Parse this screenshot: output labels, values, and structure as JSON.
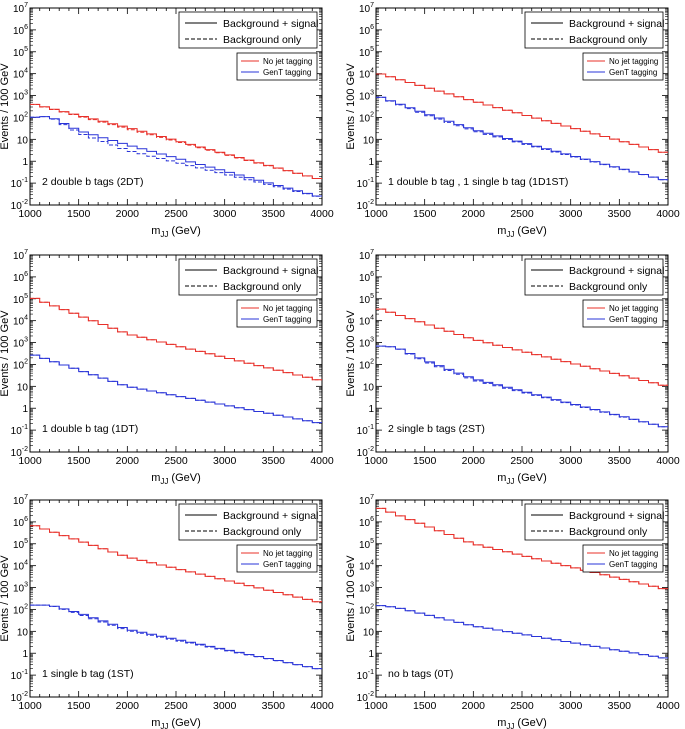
{
  "chart_data": {
    "type": "line",
    "layout": "3 rows x 2 columns of histogram panels",
    "shared": {
      "xlabel_main": "m",
      "xlabel_sub": "JJ",
      "xlabel_unit": " (GeV)",
      "ylabel": "Events / 100 GeV",
      "x_range": [
        1000,
        4000
      ],
      "x_ticks": [
        "1000",
        "1500",
        "2000",
        "2500",
        "3000",
        "3500",
        "4000"
      ],
      "y_scale": "log",
      "y_range_log10": [
        -2,
        7
      ],
      "y_ticks": [
        {
          "base": "10",
          "exp": "-2",
          "log": -2
        },
        {
          "base": "10",
          "exp": "-1",
          "log": -1
        },
        {
          "base": "1",
          "exp": "",
          "log": 0
        },
        {
          "base": "10",
          "exp": "",
          "log": 1
        },
        {
          "base": "10",
          "exp": "2",
          "log": 2
        },
        {
          "base": "10",
          "exp": "3",
          "log": 3
        },
        {
          "base": "10",
          "exp": "4",
          "log": 4
        },
        {
          "base": "10",
          "exp": "5",
          "log": 5
        },
        {
          "base": "10",
          "exp": "6",
          "log": 6
        },
        {
          "base": "10",
          "exp": "7",
          "log": 7
        }
      ],
      "legend_style": [
        "Background + signal",
        "Background only"
      ],
      "legend_series": [
        {
          "label": "No jet tagging",
          "color": "#e8302a"
        },
        {
          "label": "GenT tagging",
          "color": "#2a34d8"
        }
      ]
    },
    "panels": [
      {
        "id": "2DT",
        "label": "2 double b tags (2DT)",
        "series": [
          {
            "name": "No jet tagging",
            "style": "signal",
            "color": "#e8302a",
            "points": [
              [
                1000,
                2.65
              ],
              [
                2000,
                1.55
              ],
              [
                4000,
                -0.85
              ]
            ]
          },
          {
            "name": "No jet tagging",
            "style": "background",
            "color": "#e8302a",
            "points": [
              [
                1000,
                2.65
              ],
              [
                2000,
                1.5
              ],
              [
                4000,
                -0.85
              ]
            ]
          },
          {
            "name": "GenT tagging",
            "style": "signal",
            "color": "#2a34d8",
            "points": [
              [
                1000,
                2.0
              ],
              [
                1200,
                2.05
              ],
              [
                1500,
                1.4
              ],
              [
                2000,
                0.75
              ],
              [
                4000,
                -1.65
              ]
            ]
          },
          {
            "name": "GenT tagging",
            "style": "background",
            "color": "#2a34d8",
            "points": [
              [
                1000,
                2.0
              ],
              [
                1200,
                2.05
              ],
              [
                1500,
                1.3
              ],
              [
                2000,
                0.5
              ],
              [
                4000,
                -1.65
              ]
            ]
          }
        ]
      },
      {
        "id": "1D1ST",
        "label": "1 double b tag , 1 single b tag (1D1ST)",
        "series": [
          {
            "name": "No jet tagging",
            "style": "signal",
            "color": "#e8302a",
            "points": [
              [
                1000,
                4.05
              ],
              [
                2000,
                2.75
              ],
              [
                4000,
                0.35
              ]
            ]
          },
          {
            "name": "No jet tagging",
            "style": "background",
            "color": "#e8302a",
            "points": [
              [
                1000,
                4.05
              ],
              [
                2000,
                2.75
              ],
              [
                4000,
                0.35
              ]
            ]
          },
          {
            "name": "GenT tagging",
            "style": "signal",
            "color": "#2a34d8",
            "points": [
              [
                1000,
                3.0
              ],
              [
                1500,
                2.2
              ],
              [
                2000,
                1.45
              ],
              [
                4000,
                -0.9
              ]
            ]
          },
          {
            "name": "GenT tagging",
            "style": "background",
            "color": "#2a34d8",
            "points": [
              [
                1000,
                3.0
              ],
              [
                1500,
                2.15
              ],
              [
                2000,
                1.4
              ],
              [
                4000,
                -0.9
              ]
            ]
          }
        ]
      },
      {
        "id": "1DT",
        "label": "1 double b tag (1DT)",
        "series": [
          {
            "name": "No jet tagging",
            "style": "signal",
            "color": "#e8302a",
            "points": [
              [
                1000,
                5.1
              ],
              [
                2000,
                3.4
              ],
              [
                4000,
                1.25
              ]
            ]
          },
          {
            "name": "No jet tagging",
            "style": "background",
            "color": "#e8302a",
            "points": [
              [
                1000,
                5.1
              ],
              [
                2000,
                3.4
              ],
              [
                4000,
                1.25
              ]
            ]
          },
          {
            "name": "GenT tagging",
            "style": "signal",
            "color": "#2a34d8",
            "points": [
              [
                1000,
                2.5
              ],
              [
                2000,
                1.0
              ],
              [
                4000,
                -0.7
              ]
            ]
          },
          {
            "name": "GenT tagging",
            "style": "background",
            "color": "#2a34d8",
            "points": [
              [
                1000,
                2.5
              ],
              [
                2000,
                1.0
              ],
              [
                4000,
                -0.7
              ]
            ]
          }
        ]
      },
      {
        "id": "2ST",
        "label": "2 single b tags (2ST)",
        "series": [
          {
            "name": "No jet tagging",
            "style": "signal",
            "color": "#e8302a",
            "points": [
              [
                1000,
                4.6
              ],
              [
                2000,
                3.15
              ],
              [
                4000,
                1.0
              ]
            ]
          },
          {
            "name": "No jet tagging",
            "style": "background",
            "color": "#e8302a",
            "points": [
              [
                1000,
                4.6
              ],
              [
                2000,
                3.15
              ],
              [
                4000,
                1.0
              ]
            ]
          },
          {
            "name": "GenT tagging",
            "style": "signal",
            "color": "#2a34d8",
            "points": [
              [
                1000,
                2.85
              ],
              [
                1200,
                2.8
              ],
              [
                1500,
                2.2
              ],
              [
                2000,
                1.35
              ],
              [
                4000,
                -0.9
              ]
            ]
          },
          {
            "name": "GenT tagging",
            "style": "background",
            "color": "#2a34d8",
            "points": [
              [
                1000,
                2.85
              ],
              [
                1200,
                2.8
              ],
              [
                1500,
                2.15
              ],
              [
                2000,
                1.3
              ],
              [
                4000,
                -0.9
              ]
            ]
          }
        ]
      },
      {
        "id": "1ST",
        "label": "1 single b tag (1ST)",
        "series": [
          {
            "name": "No jet tagging",
            "style": "signal",
            "color": "#e8302a",
            "points": [
              [
                1000,
                5.9
              ],
              [
                2000,
                4.4
              ],
              [
                4000,
                2.3
              ]
            ]
          },
          {
            "name": "No jet tagging",
            "style": "background",
            "color": "#e8302a",
            "points": [
              [
                1000,
                5.9
              ],
              [
                2000,
                4.4
              ],
              [
                4000,
                2.3
              ]
            ]
          },
          {
            "name": "GenT tagging",
            "style": "signal",
            "color": "#2a34d8",
            "points": [
              [
                1000,
                2.2
              ],
              [
                1200,
                2.2
              ],
              [
                1500,
                1.85
              ],
              [
                2000,
                1.1
              ],
              [
                4000,
                -0.75
              ]
            ]
          },
          {
            "name": "GenT tagging",
            "style": "background",
            "color": "#2a34d8",
            "points": [
              [
                1000,
                2.2
              ],
              [
                1200,
                2.2
              ],
              [
                1500,
                1.8
              ],
              [
                2000,
                1.05
              ],
              [
                4000,
                -0.75
              ]
            ]
          }
        ]
      },
      {
        "id": "0T",
        "label": "no b tags (0T)",
        "series": [
          {
            "name": "No jet tagging",
            "style": "signal",
            "color": "#e8302a",
            "points": [
              [
                1000,
                6.7
              ],
              [
                2000,
                5.0
              ],
              [
                4000,
                2.9
              ]
            ]
          },
          {
            "name": "No jet tagging",
            "style": "background",
            "color": "#e8302a",
            "points": [
              [
                1000,
                6.7
              ],
              [
                2000,
                5.0
              ],
              [
                4000,
                2.9
              ]
            ]
          },
          {
            "name": "GenT tagging",
            "style": "signal",
            "color": "#2a34d8",
            "points": [
              [
                1000,
                2.2
              ],
              [
                1200,
                2.1
              ],
              [
                2000,
                1.25
              ],
              [
                4000,
                -0.25
              ]
            ]
          },
          {
            "name": "GenT tagging",
            "style": "background",
            "color": "#2a34d8",
            "points": [
              [
                1000,
                2.2
              ],
              [
                1200,
                2.1
              ],
              [
                2000,
                1.25
              ],
              [
                4000,
                -0.25
              ]
            ]
          }
        ]
      }
    ]
  }
}
